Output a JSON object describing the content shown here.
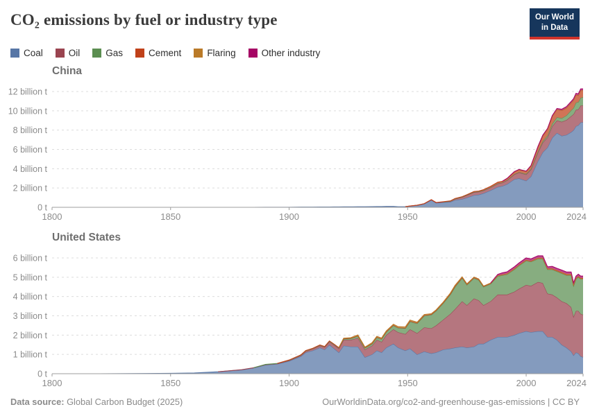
{
  "header": {
    "title": "CO₂ emissions by fuel or industry type",
    "logo": {
      "line1": "Our World",
      "line2": "in Data",
      "bg": "#16365c",
      "accent": "#d0342c"
    }
  },
  "legend": [
    {
      "label": "Coal",
      "color": "#5776A6"
    },
    {
      "label": "Oil",
      "color": "#9A4450"
    },
    {
      "label": "Gas",
      "color": "#5B8E51"
    },
    {
      "label": "Cement",
      "color": "#C04119"
    },
    {
      "label": "Flaring",
      "color": "#BA7A28"
    },
    {
      "label": "Other industry",
      "color": "#A60565"
    }
  ],
  "footer": {
    "source_label": "Data source:",
    "source_rest": " Global Carbon Budget (2025)",
    "link": "OurWorldinData.org/co2-and-greenhouse-gas-emissions | CC BY"
  },
  "chart_data": [
    {
      "type": "area",
      "stacked": true,
      "title": "China",
      "unit": "billion t CO₂",
      "xlim": [
        1800,
        2024
      ],
      "xticks": [
        1800,
        1850,
        1900,
        1950,
        2000,
        2024
      ],
      "ylim": [
        0,
        12.4
      ],
      "yticks": [
        0,
        2,
        4,
        6,
        8,
        10,
        12
      ],
      "ytick_labels": [
        "0 t",
        "2 billion t",
        "4 billion t",
        "6 billion t",
        "8 billion t",
        "10 billion t",
        "12 billion t"
      ],
      "grid": true,
      "years": [
        1800,
        1820,
        1840,
        1850,
        1860,
        1870,
        1880,
        1885,
        1890,
        1895,
        1900,
        1905,
        1907,
        1910,
        1913,
        1915,
        1917,
        1919,
        1921,
        1923,
        1926,
        1929,
        1932,
        1935,
        1937,
        1939,
        1941,
        1944,
        1946,
        1949,
        1951,
        1954,
        1957,
        1960,
        1962,
        1965,
        1968,
        1970,
        1973,
        1975,
        1978,
        1980,
        1982,
        1985,
        1988,
        1990,
        1992,
        1995,
        1997,
        2000,
        2002,
        2005,
        2007,
        2009,
        2011,
        2013,
        2015,
        2017,
        2019,
        2020,
        2021,
        2022,
        2023,
        2024
      ],
      "series": [
        {
          "name": "Coal",
          "values": [
            0,
            0,
            0,
            0,
            0,
            0,
            0,
            0,
            0.005,
            0.01,
            0.01,
            0.02,
            0.02,
            0.02,
            0.03,
            0.03,
            0.03,
            0.04,
            0.04,
            0.05,
            0.05,
            0.06,
            0.06,
            0.07,
            0.08,
            0.08,
            0.09,
            0.09,
            0.06,
            0.07,
            0.12,
            0.2,
            0.35,
            0.75,
            0.45,
            0.5,
            0.55,
            0.75,
            0.85,
            1.0,
            1.25,
            1.3,
            1.45,
            1.75,
            2.1,
            2.2,
            2.4,
            2.9,
            3.0,
            2.75,
            3.2,
            4.8,
            5.7,
            6.2,
            7.2,
            7.7,
            7.4,
            7.5,
            7.8,
            8.0,
            8.4,
            8.5,
            8.8,
            8.8
          ]
        },
        {
          "name": "Oil",
          "values": [
            0,
            0,
            0,
            0,
            0,
            0,
            0,
            0,
            0,
            0,
            0,
            0,
            0,
            0,
            0,
            0,
            0,
            0,
            0,
            0,
            0,
            0,
            0,
            0,
            0,
            0,
            0,
            0,
            0,
            0,
            0.01,
            0.01,
            0.02,
            0.03,
            0.03,
            0.05,
            0.08,
            0.12,
            0.2,
            0.25,
            0.3,
            0.3,
            0.28,
            0.3,
            0.35,
            0.35,
            0.4,
            0.5,
            0.6,
            0.65,
            0.7,
            0.9,
            1.0,
            1.05,
            1.2,
            1.3,
            1.45,
            1.55,
            1.65,
            1.65,
            1.7,
            1.65,
            1.75,
            1.75
          ]
        },
        {
          "name": "Gas",
          "values": [
            0,
            0,
            0,
            0,
            0,
            0,
            0,
            0,
            0,
            0,
            0,
            0,
            0,
            0,
            0,
            0,
            0,
            0,
            0,
            0,
            0,
            0,
            0,
            0,
            0,
            0,
            0,
            0,
            0,
            0,
            0,
            0,
            0,
            0,
            0,
            0,
            0.01,
            0.01,
            0.02,
            0.02,
            0.03,
            0.03,
            0.03,
            0.03,
            0.03,
            0.03,
            0.03,
            0.04,
            0.05,
            0.06,
            0.07,
            0.1,
            0.14,
            0.18,
            0.26,
            0.33,
            0.38,
            0.47,
            0.6,
            0.65,
            0.75,
            0.75,
            0.8,
            0.85
          ]
        },
        {
          "name": "Cement",
          "values": [
            0,
            0,
            0,
            0,
            0,
            0,
            0,
            0,
            0,
            0,
            0,
            0,
            0,
            0,
            0,
            0,
            0,
            0,
            0,
            0,
            0,
            0,
            0,
            0,
            0,
            0,
            0,
            0,
            0,
            0,
            0.01,
            0.01,
            0.02,
            0.02,
            0.02,
            0.03,
            0.03,
            0.03,
            0.04,
            0.04,
            0.06,
            0.06,
            0.07,
            0.1,
            0.12,
            0.12,
            0.16,
            0.22,
            0.24,
            0.25,
            0.3,
            0.45,
            0.55,
            0.65,
            0.75,
            0.8,
            0.8,
            0.78,
            0.78,
            0.8,
            0.8,
            0.7,
            0.75,
            0.7
          ]
        },
        {
          "name": "Flaring",
          "values": [
            0,
            0,
            0,
            0,
            0,
            0,
            0,
            0,
            0,
            0,
            0,
            0,
            0,
            0,
            0,
            0,
            0,
            0,
            0,
            0,
            0,
            0,
            0,
            0,
            0,
            0,
            0,
            0,
            0,
            0,
            0,
            0,
            0,
            0,
            0,
            0,
            0,
            0,
            0,
            0,
            0,
            0,
            0,
            0,
            0,
            0,
            0,
            0.01,
            0.01,
            0.01,
            0.01,
            0.01,
            0.01,
            0.01,
            0.01,
            0.01,
            0.02,
            0.02,
            0.02,
            0.02,
            0.02,
            0.02,
            0.02,
            0.02
          ]
        },
        {
          "name": "Other industry",
          "values": [
            0,
            0,
            0,
            0,
            0,
            0,
            0,
            0,
            0,
            0,
            0,
            0,
            0,
            0,
            0,
            0,
            0,
            0,
            0,
            0,
            0,
            0,
            0,
            0,
            0,
            0,
            0,
            0,
            0,
            0,
            0,
            0,
            0,
            0,
            0,
            0,
            0,
            0,
            0,
            0,
            0,
            0,
            0,
            0,
            0,
            0,
            0.02,
            0.03,
            0.03,
            0.03,
            0.04,
            0.06,
            0.07,
            0.08,
            0.09,
            0.1,
            0.12,
            0.12,
            0.13,
            0.13,
            0.14,
            0.14,
            0.15,
            0.15
          ]
        }
      ]
    },
    {
      "type": "area",
      "stacked": true,
      "title": "United States",
      "unit": "billion t CO₂",
      "xlim": [
        1800,
        2024
      ],
      "xticks": [
        1800,
        1850,
        1900,
        1950,
        2000,
        2024
      ],
      "ylim": [
        0,
        6.2
      ],
      "yticks": [
        0,
        1,
        2,
        3,
        4,
        5,
        6
      ],
      "ytick_labels": [
        "0 t",
        "1 billion t",
        "2 billion t",
        "3 billion t",
        "4 billion t",
        "5 billion t",
        "6 billion t"
      ],
      "grid": true,
      "years": [
        1800,
        1820,
        1840,
        1850,
        1860,
        1870,
        1880,
        1885,
        1890,
        1895,
        1900,
        1905,
        1907,
        1910,
        1913,
        1915,
        1917,
        1919,
        1921,
        1923,
        1926,
        1929,
        1932,
        1935,
        1937,
        1939,
        1941,
        1944,
        1946,
        1949,
        1951,
        1954,
        1957,
        1960,
        1962,
        1965,
        1968,
        1970,
        1973,
        1975,
        1978,
        1980,
        1982,
        1985,
        1988,
        1990,
        1992,
        1995,
        1997,
        2000,
        2002,
        2005,
        2007,
        2009,
        2011,
        2013,
        2015,
        2017,
        2019,
        2020,
        2021,
        2022,
        2023,
        2024
      ],
      "series": [
        {
          "name": "Coal",
          "values": [
            0,
            0,
            0.01,
            0.02,
            0.04,
            0.1,
            0.2,
            0.3,
            0.45,
            0.5,
            0.65,
            0.9,
            1.1,
            1.2,
            1.35,
            1.25,
            1.5,
            1.3,
            1.1,
            1.45,
            1.4,
            1.4,
            0.85,
            1.0,
            1.2,
            1.1,
            1.35,
            1.55,
            1.35,
            1.2,
            1.3,
            1.0,
            1.15,
            1.05,
            1.1,
            1.25,
            1.3,
            1.35,
            1.4,
            1.35,
            1.4,
            1.55,
            1.55,
            1.75,
            1.9,
            1.9,
            1.9,
            2.0,
            2.1,
            2.2,
            2.15,
            2.2,
            2.2,
            1.9,
            1.9,
            1.75,
            1.5,
            1.35,
            1.15,
            0.95,
            1.1,
            1.05,
            0.9,
            0.85
          ]
        },
        {
          "name": "Oil",
          "values": [
            0,
            0,
            0,
            0,
            0,
            0,
            0.01,
            0.01,
            0.02,
            0.02,
            0.03,
            0.05,
            0.06,
            0.08,
            0.1,
            0.12,
            0.15,
            0.18,
            0.2,
            0.3,
            0.35,
            0.45,
            0.4,
            0.45,
            0.55,
            0.55,
            0.65,
            0.75,
            0.8,
            0.85,
            1.0,
            1.1,
            1.25,
            1.3,
            1.4,
            1.55,
            1.8,
            2.0,
            2.35,
            2.2,
            2.5,
            2.25,
            2.0,
            2.0,
            2.2,
            2.2,
            2.2,
            2.25,
            2.3,
            2.4,
            2.4,
            2.55,
            2.5,
            2.25,
            2.2,
            2.2,
            2.25,
            2.3,
            2.3,
            2.0,
            2.15,
            2.2,
            2.2,
            2.2
          ]
        },
        {
          "name": "Gas",
          "values": [
            0,
            0,
            0,
            0,
            0,
            0,
            0,
            0,
            0.01,
            0.01,
            0.02,
            0.02,
            0.03,
            0.03,
            0.03,
            0.03,
            0.04,
            0.04,
            0.04,
            0.05,
            0.07,
            0.1,
            0.09,
            0.1,
            0.13,
            0.14,
            0.16,
            0.2,
            0.22,
            0.3,
            0.4,
            0.5,
            0.6,
            0.7,
            0.75,
            0.85,
            1.0,
            1.15,
            1.2,
            1.05,
            1.05,
            1.05,
            0.95,
            0.9,
            0.95,
            1.0,
            1.05,
            1.15,
            1.2,
            1.25,
            1.25,
            1.2,
            1.25,
            1.25,
            1.3,
            1.35,
            1.45,
            1.45,
            1.65,
            1.6,
            1.65,
            1.75,
            1.8,
            1.85
          ]
        },
        {
          "name": "Cement",
          "values": [
            0,
            0,
            0,
            0,
            0,
            0,
            0,
            0,
            0,
            0,
            0.01,
            0.01,
            0.01,
            0.01,
            0.01,
            0.01,
            0.01,
            0.01,
            0.01,
            0.02,
            0.02,
            0.02,
            0.01,
            0.02,
            0.02,
            0.02,
            0.02,
            0.02,
            0.02,
            0.02,
            0.03,
            0.03,
            0.03,
            0.03,
            0.03,
            0.03,
            0.04,
            0.04,
            0.04,
            0.04,
            0.04,
            0.04,
            0.03,
            0.04,
            0.04,
            0.04,
            0.04,
            0.04,
            0.04,
            0.04,
            0.04,
            0.05,
            0.05,
            0.04,
            0.04,
            0.04,
            0.04,
            0.04,
            0.04,
            0.04,
            0.04,
            0.04,
            0.04,
            0.04
          ]
        },
        {
          "name": "Flaring",
          "values": [
            0,
            0,
            0,
            0,
            0,
            0,
            0,
            0,
            0,
            0,
            0,
            0,
            0,
            0,
            0,
            0,
            0,
            0,
            0,
            0.02,
            0.03,
            0.04,
            0.03,
            0.04,
            0.04,
            0.04,
            0.04,
            0.04,
            0.05,
            0.05,
            0.05,
            0.04,
            0.04,
            0.03,
            0.03,
            0.03,
            0.04,
            0.04,
            0.03,
            0.02,
            0.02,
            0.02,
            0.01,
            0.01,
            0.01,
            0.01,
            0.01,
            0.01,
            0.01,
            0.01,
            0.01,
            0.01,
            0.01,
            0.01,
            0.02,
            0.02,
            0.03,
            0.03,
            0.03,
            0.03,
            0.02,
            0.02,
            0.02,
            0.02
          ]
        },
        {
          "name": "Other industry",
          "values": [
            0,
            0,
            0,
            0,
            0,
            0,
            0,
            0,
            0,
            0,
            0,
            0,
            0,
            0,
            0,
            0,
            0,
            0,
            0,
            0,
            0,
            0,
            0,
            0,
            0,
            0,
            0,
            0,
            0,
            0,
            0,
            0,
            0,
            0,
            0,
            0,
            0,
            0,
            0,
            0,
            0,
            0,
            0,
            0,
            0.05,
            0.08,
            0.08,
            0.09,
            0.09,
            0.1,
            0.1,
            0.1,
            0.1,
            0.09,
            0.1,
            0.1,
            0.1,
            0.1,
            0.1,
            0.09,
            0.1,
            0.1,
            0.1,
            0.1
          ]
        }
      ]
    }
  ]
}
